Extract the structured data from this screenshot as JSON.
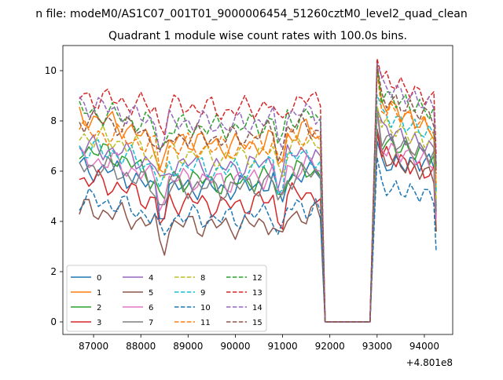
{
  "figure": {
    "suptitle": "n file: modeM0/AS1C07_001T01_9000006454_51260cztM0_level2_quad_clean",
    "title": "Quadrant 1 module wise count rates with 100.0s bins.",
    "offset_label": "+4.801e8"
  },
  "chart_data": {
    "type": "line",
    "title": "Quadrant 1 module wise count rates with 100.0s bins.",
    "xlabel": "",
    "ylabel": "",
    "x_offset": 480100000,
    "xlim": [
      86350,
      94600
    ],
    "ylim": [
      -0.5,
      11
    ],
    "x_ticks": [
      87000,
      88000,
      89000,
      90000,
      91000,
      92000,
      93000,
      94000
    ],
    "y_ticks": [
      0,
      2,
      4,
      6,
      8,
      10
    ],
    "grid": false,
    "legend_placement": "lower-left",
    "legend_columns": 4,
    "gap": {
      "start": 91900,
      "end": 92850
    },
    "x_start": 86700,
    "x_end": 94250,
    "series": [
      {
        "name": "0",
        "color": "#1f77b4",
        "dash": "solid",
        "levels": [
          6.1,
          6.0,
          5.2,
          5.4,
          5.3,
          5.5,
          5.9,
          6.2,
          6.4
        ]
      },
      {
        "name": "1",
        "color": "#ff7f0e",
        "dash": "solid",
        "levels": [
          8.2,
          7.9,
          7.0,
          7.3,
          7.0,
          7.1,
          7.6,
          8.9,
          7.5
        ]
      },
      {
        "name": "2",
        "color": "#2ca02c",
        "dash": "solid",
        "levels": [
          6.9,
          6.6,
          5.6,
          5.7,
          5.5,
          5.7,
          6.0,
          7.2,
          6.5
        ]
      },
      {
        "name": "3",
        "color": "#d62728",
        "dash": "solid",
        "levels": [
          5.7,
          5.4,
          4.7,
          4.8,
          4.6,
          4.8,
          5.1,
          6.8,
          5.8
        ]
      },
      {
        "name": "4",
        "color": "#9467bd",
        "dash": "solid",
        "levels": [
          7.0,
          6.8,
          6.2,
          6.3,
          6.1,
          6.3,
          6.8,
          7.8,
          6.8
        ]
      },
      {
        "name": "5",
        "color": "#8c564b",
        "dash": "solid",
        "levels": [
          4.5,
          4.3,
          3.8,
          3.9,
          3.8,
          3.9,
          4.3,
          6.6,
          5.8
        ]
      },
      {
        "name": "6",
        "color": "#e377c2",
        "dash": "solid",
        "levels": [
          6.5,
          6.3,
          5.6,
          5.7,
          5.6,
          5.8,
          6.2,
          7.0,
          6.3
        ]
      },
      {
        "name": "7",
        "color": "#7f7f7f",
        "dash": "solid",
        "levels": [
          6.3,
          6.0,
          5.3,
          5.4,
          5.3,
          5.5,
          5.9,
          7.4,
          6.6
        ]
      },
      {
        "name": "8",
        "color": "#bcbd22",
        "dash": "dashed",
        "levels": [
          7.4,
          7.2,
          6.6,
          6.7,
          6.5,
          6.7,
          7.1,
          7.9,
          7.1
        ]
      },
      {
        "name": "9",
        "color": "#17becf",
        "dash": "dashed",
        "levels": [
          6.9,
          6.7,
          6.1,
          6.2,
          6.0,
          6.2,
          6.6,
          8.3,
          7.4
        ]
      },
      {
        "name": "10",
        "color": "#1f77b4",
        "dash": "dashed",
        "levels": [
          4.9,
          4.7,
          4.1,
          4.2,
          4.1,
          4.3,
          4.6,
          5.4,
          5.0
        ]
      },
      {
        "name": "11",
        "color": "#ff7f0e",
        "dash": "dashed",
        "levels": [
          7.6,
          7.4,
          6.9,
          7.0,
          6.9,
          7.1,
          7.4,
          8.6,
          7.7
        ]
      },
      {
        "name": "12",
        "color": "#2ca02c",
        "dash": "dashed",
        "levels": [
          8.4,
          8.2,
          7.7,
          7.8,
          7.7,
          7.9,
          8.2,
          9.1,
          8.3
        ]
      },
      {
        "name": "13",
        "color": "#d62728",
        "dash": "dashed",
        "levels": [
          9.0,
          8.8,
          8.5,
          8.6,
          8.4,
          8.6,
          8.8,
          9.8,
          8.8
        ]
      },
      {
        "name": "14",
        "color": "#9467bd",
        "dash": "dashed",
        "levels": [
          8.7,
          8.4,
          7.9,
          8.0,
          7.8,
          8.0,
          8.3,
          9.5,
          8.5
        ]
      },
      {
        "name": "15",
        "color": "#8c564b",
        "dash": "dashed",
        "levels": [
          8.1,
          7.9,
          7.3,
          7.4,
          7.3,
          7.5,
          7.8,
          9.0,
          8.1
        ]
      }
    ]
  }
}
